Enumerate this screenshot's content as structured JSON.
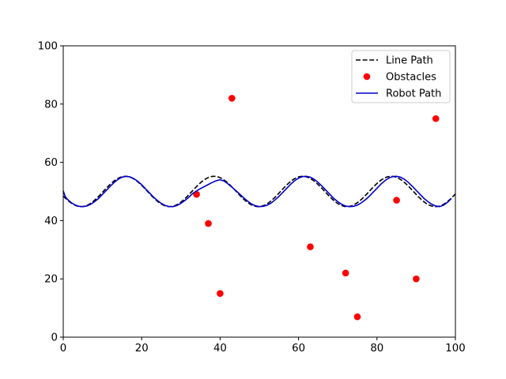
{
  "chart_data": {
    "type": "line",
    "title": "",
    "xlabel": "",
    "ylabel": "",
    "xlim": [
      0,
      100
    ],
    "ylim": [
      0,
      100
    ],
    "xticks": [
      "0",
      "20",
      "40",
      "60",
      "80",
      "100"
    ],
    "yticks": [
      "0",
      "20",
      "40",
      "60",
      "80",
      "100"
    ],
    "grid": false,
    "legend_position": "top-right",
    "series": [
      {
        "name": "Line Path",
        "kind": "line",
        "style": "dashed",
        "color": "#000000",
        "function": "50 + 5.2*sin(2*pi*(x - 10.2)/22.6)",
        "x_range": [
          0,
          100
        ]
      },
      {
        "name": "Obstacles",
        "kind": "scatter",
        "color": "#ff0000",
        "points": [
          [
            34,
            49
          ],
          [
            37,
            39
          ],
          [
            40,
            15
          ],
          [
            43,
            82
          ],
          [
            63,
            31
          ],
          [
            72,
            22
          ],
          [
            75,
            7
          ],
          [
            85,
            47
          ],
          [
            90,
            20
          ],
          [
            95,
            75
          ]
        ]
      },
      {
        "name": "Robot Path",
        "kind": "line",
        "style": "solid",
        "color": "#0000cc",
        "points": [
          [
            0,
            50.2
          ],
          [
            0.5,
            48.3
          ],
          [
            1,
            47.4
          ],
          [
            2,
            46.2
          ],
          [
            3,
            45.4
          ],
          [
            4,
            44.9
          ],
          [
            5,
            44.8
          ],
          [
            6,
            45.0
          ],
          [
            7,
            45.6
          ],
          [
            8,
            46.5
          ],
          [
            9,
            47.6
          ],
          [
            10,
            49.0
          ],
          [
            11,
            50.4
          ],
          [
            12,
            51.8
          ],
          [
            13,
            53.1
          ],
          [
            14,
            54.2
          ],
          [
            15,
            54.9
          ],
          [
            16,
            55.2
          ],
          [
            17,
            55.0
          ],
          [
            18,
            54.4
          ],
          [
            19,
            53.5
          ],
          [
            20,
            52.3
          ],
          [
            21,
            50.9
          ],
          [
            22,
            49.5
          ],
          [
            23,
            48.1
          ],
          [
            24,
            46.9
          ],
          [
            25,
            45.9
          ],
          [
            26,
            45.2
          ],
          [
            27,
            44.8
          ],
          [
            28,
            44.8
          ],
          [
            29,
            45.2
          ],
          [
            30,
            45.9
          ],
          [
            31,
            46.9
          ],
          [
            32,
            48.0
          ],
          [
            33,
            49.3
          ],
          [
            34,
            50.2
          ],
          [
            35,
            51.0
          ],
          [
            36,
            51.7
          ],
          [
            37,
            52.4
          ],
          [
            38,
            53.1
          ],
          [
            39,
            53.7
          ],
          [
            40,
            54.0
          ],
          [
            41,
            53.6
          ],
          [
            42,
            52.6
          ],
          [
            43,
            51.5
          ],
          [
            44,
            50.3
          ],
          [
            45,
            49.1
          ],
          [
            46,
            47.8
          ],
          [
            47,
            46.7
          ],
          [
            48,
            45.7
          ],
          [
            49,
            45.1
          ],
          [
            50,
            44.8
          ],
          [
            51,
            44.9
          ],
          [
            52,
            45.3
          ],
          [
            53,
            46.0
          ],
          [
            54,
            47.1
          ],
          [
            55,
            48.3
          ],
          [
            56,
            49.7
          ],
          [
            57,
            51.1
          ],
          [
            58,
            52.5
          ],
          [
            59,
            53.7
          ],
          [
            60,
            54.6
          ],
          [
            61,
            55.1
          ],
          [
            62,
            55.2
          ],
          [
            63,
            54.9
          ],
          [
            64,
            54.2
          ],
          [
            65,
            53.1
          ],
          [
            66,
            51.8
          ],
          [
            67,
            50.4
          ],
          [
            68,
            49.0
          ],
          [
            69,
            47.6
          ],
          [
            70,
            46.5
          ],
          [
            71,
            45.6
          ],
          [
            72,
            45.0
          ],
          [
            73,
            44.8
          ],
          [
            74,
            44.9
          ],
          [
            75,
            45.3
          ],
          [
            76,
            46.1
          ],
          [
            77,
            47.1
          ],
          [
            78,
            48.3
          ],
          [
            79,
            49.7
          ],
          [
            80,
            51.1
          ],
          [
            81,
            52.5
          ],
          [
            82,
            53.7
          ],
          [
            83,
            54.6
          ],
          [
            84,
            55.1
          ],
          [
            85,
            55.2
          ],
          [
            86,
            54.9
          ],
          [
            87,
            54.2
          ],
          [
            88,
            53.1
          ],
          [
            89,
            51.8
          ],
          [
            90,
            50.4
          ],
          [
            91,
            49.0
          ],
          [
            92,
            47.6
          ],
          [
            93,
            46.5
          ],
          [
            94,
            45.6
          ],
          [
            95,
            45.0
          ],
          [
            96,
            44.8
          ],
          [
            97,
            45.3
          ],
          [
            98,
            46.3
          ],
          [
            99,
            47.6
          ]
        ]
      }
    ]
  }
}
